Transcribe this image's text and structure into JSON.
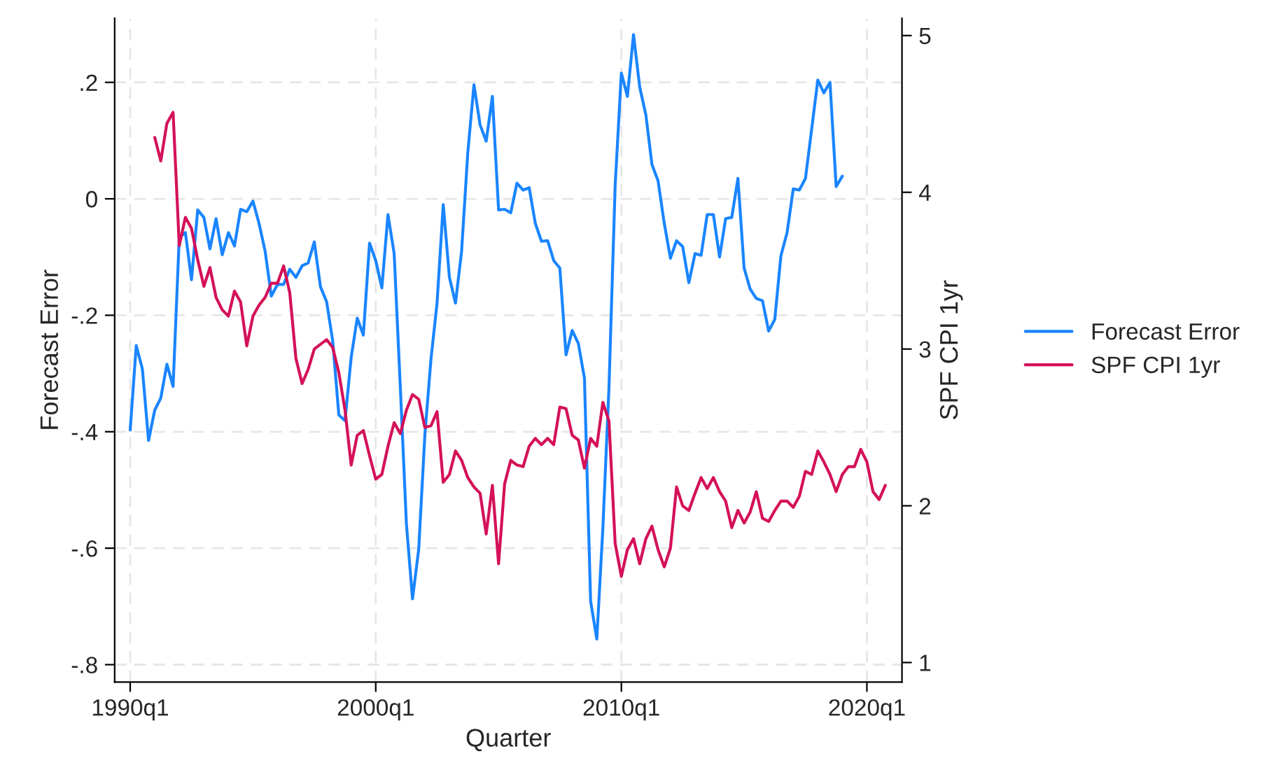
{
  "chart_data": {
    "type": "line",
    "xlabel": "Quarter",
    "ylabel": "Forecast Error",
    "y2label": "SPF CPI 1yr",
    "xlim": [
      "1989-05-15",
      "2021-06-06"
    ],
    "xticks": [
      {
        "value": "1990-01",
        "label": "1990q1"
      },
      {
        "value": "2000-01",
        "label": "2000q1"
      },
      {
        "value": "2010-01",
        "label": "2010q1"
      },
      {
        "value": "2020-01",
        "label": "2020q1"
      }
    ],
    "ylim": [
      -0.83,
      0.31
    ],
    "yticks": [
      {
        "value": -0.8,
        "label": "-.8"
      },
      {
        "value": -0.6,
        "label": "-.6"
      },
      {
        "value": -0.4,
        "label": "-.4"
      },
      {
        "value": -0.2,
        "label": "-.2"
      },
      {
        "value": 0,
        "label": "0"
      },
      {
        "value": 0.2,
        "label": ".2"
      }
    ],
    "y2lim": [
      0.875,
      5.11
    ],
    "y2ticks": [
      1,
      2,
      3,
      4,
      5
    ],
    "grid": true,
    "legend": "right",
    "series": [
      {
        "name": "Forecast Error",
        "color": "#1a85ff",
        "x": [
          "1990-01",
          "1990-04",
          "1990-07",
          "1990-10",
          "1991-01",
          "1991-04",
          "1991-07",
          "1991-10",
          "1992-01",
          "1992-04",
          "1992-07",
          "1992-10",
          "1993-01",
          "1993-04",
          "1993-07",
          "1993-10",
          "1994-01",
          "1994-04",
          "1994-07",
          "1994-10",
          "1995-01",
          "1995-04",
          "1995-07",
          "1995-10",
          "1996-01",
          "1996-04",
          "1996-07",
          "1996-10",
          "1997-01",
          "1997-04",
          "1997-07",
          "1997-10",
          "1998-01",
          "1998-04",
          "1998-07",
          "1998-10",
          "1999-01",
          "1999-04",
          "1999-07",
          "1999-10",
          "2000-01",
          "2000-04",
          "2000-07",
          "2000-10",
          "2001-01",
          "2001-04",
          "2001-07",
          "2001-10",
          "2002-01",
          "2002-04",
          "2002-07",
          "2002-10",
          "2003-01",
          "2003-04",
          "2003-07",
          "2003-10",
          "2004-01",
          "2004-04",
          "2004-07",
          "2004-10",
          "2005-01",
          "2005-04",
          "2005-07",
          "2005-10",
          "2006-01",
          "2006-04",
          "2006-07",
          "2006-10",
          "2007-01",
          "2007-04",
          "2007-07",
          "2007-10",
          "2008-01",
          "2008-04",
          "2008-07",
          "2008-10",
          "2009-01",
          "2009-04",
          "2009-07",
          "2009-10",
          "2010-01",
          "2010-04",
          "2010-07",
          "2010-10",
          "2011-01",
          "2011-04",
          "2011-07",
          "2011-10",
          "2012-01",
          "2012-04",
          "2012-07",
          "2012-10",
          "2013-01",
          "2013-04",
          "2013-07",
          "2013-10",
          "2014-01",
          "2014-04",
          "2014-07",
          "2014-10",
          "2015-01",
          "2015-04",
          "2015-07",
          "2015-10",
          "2016-01",
          "2016-04",
          "2016-07",
          "2016-10",
          "2017-01",
          "2017-04",
          "2017-07",
          "2017-10",
          "2018-01",
          "2018-04",
          "2018-07",
          "2018-10",
          "2019-01"
        ],
        "values": [
          -0.397,
          -0.252,
          -0.292,
          -0.415,
          -0.363,
          -0.342,
          -0.284,
          -0.322,
          -0.066,
          -0.058,
          -0.139,
          -0.019,
          -0.032,
          -0.086,
          -0.034,
          -0.096,
          -0.058,
          -0.081,
          -0.018,
          -0.022,
          -0.004,
          -0.042,
          -0.09,
          -0.167,
          -0.147,
          -0.147,
          -0.121,
          -0.135,
          -0.115,
          -0.11,
          -0.074,
          -0.151,
          -0.177,
          -0.244,
          -0.371,
          -0.381,
          -0.272,
          -0.205,
          -0.234,
          -0.076,
          -0.106,
          -0.153,
          -0.027,
          -0.094,
          -0.324,
          -0.558,
          -0.687,
          -0.602,
          -0.405,
          -0.276,
          -0.179,
          -0.01,
          -0.135,
          -0.179,
          -0.09,
          0.079,
          0.196,
          0.127,
          0.099,
          0.176,
          -0.019,
          -0.018,
          -0.024,
          0.027,
          0.015,
          0.019,
          -0.042,
          -0.073,
          -0.072,
          -0.106,
          -0.119,
          -0.268,
          -0.226,
          -0.248,
          -0.308,
          -0.691,
          -0.756,
          -0.566,
          -0.324,
          0.023,
          0.216,
          0.176,
          0.282,
          0.192,
          0.144,
          0.059,
          0.031,
          -0.042,
          -0.102,
          -0.072,
          -0.082,
          -0.144,
          -0.094,
          -0.097,
          -0.027,
          -0.027,
          -0.1,
          -0.034,
          -0.032,
          0.035,
          -0.119,
          -0.155,
          -0.171,
          -0.175,
          -0.227,
          -0.207,
          -0.098,
          -0.058,
          0.017,
          0.015,
          0.035,
          0.119,
          0.204,
          0.182,
          0.2,
          0.021,
          0.039
        ]
      },
      {
        "name": "SPF CPI 1yr",
        "color": "#d41159",
        "axis": "y2",
        "x": [
          "1991-01",
          "1991-04",
          "1991-07",
          "1991-10",
          "1992-01",
          "1992-04",
          "1992-07",
          "1992-10",
          "1993-01",
          "1993-04",
          "1993-07",
          "1993-10",
          "1994-01",
          "1994-04",
          "1994-07",
          "1994-10",
          "1995-01",
          "1995-04",
          "1995-07",
          "1995-10",
          "1996-01",
          "1996-04",
          "1996-07",
          "1996-10",
          "1997-01",
          "1997-04",
          "1997-07",
          "1997-10",
          "1998-01",
          "1998-04",
          "1998-07",
          "1998-10",
          "1999-01",
          "1999-04",
          "1999-07",
          "1999-10",
          "2000-01",
          "2000-04",
          "2000-07",
          "2000-10",
          "2001-01",
          "2001-04",
          "2001-07",
          "2001-10",
          "2002-01",
          "2002-04",
          "2002-07",
          "2002-10",
          "2003-01",
          "2003-04",
          "2003-07",
          "2003-10",
          "2004-01",
          "2004-04",
          "2004-07",
          "2004-10",
          "2005-01",
          "2005-04",
          "2005-07",
          "2005-10",
          "2006-01",
          "2006-04",
          "2006-07",
          "2006-10",
          "2007-01",
          "2007-04",
          "2007-07",
          "2007-10",
          "2008-01",
          "2008-04",
          "2008-07",
          "2008-10",
          "2009-01",
          "2009-04",
          "2009-07",
          "2009-10",
          "2010-01",
          "2010-04",
          "2010-07",
          "2010-10",
          "2011-01",
          "2011-04",
          "2011-07",
          "2011-10",
          "2012-01",
          "2012-04",
          "2012-07",
          "2012-10",
          "2013-01",
          "2013-04",
          "2013-07",
          "2013-10",
          "2014-01",
          "2014-04",
          "2014-07",
          "2014-10",
          "2015-01",
          "2015-04",
          "2015-07",
          "2015-10",
          "2016-01",
          "2016-04",
          "2016-07",
          "2016-10",
          "2017-01",
          "2017-04",
          "2017-07",
          "2017-10",
          "2018-01",
          "2018-04",
          "2018-07",
          "2018-10",
          "2019-01",
          "2019-04",
          "2019-07",
          "2019-10",
          "2020-01",
          "2020-04",
          "2020-07",
          "2020-10"
        ],
        "values": [
          4.35,
          4.2,
          4.44,
          4.51,
          3.66,
          3.84,
          3.77,
          3.57,
          3.4,
          3.52,
          3.33,
          3.25,
          3.21,
          3.37,
          3.3,
          3.02,
          3.21,
          3.28,
          3.33,
          3.42,
          3.42,
          3.53,
          3.36,
          2.94,
          2.78,
          2.87,
          3.0,
          3.03,
          3.06,
          3.01,
          2.85,
          2.61,
          2.26,
          2.45,
          2.48,
          2.32,
          2.17,
          2.2,
          2.38,
          2.53,
          2.46,
          2.61,
          2.71,
          2.68,
          2.5,
          2.51,
          2.6,
          2.15,
          2.2,
          2.35,
          2.29,
          2.18,
          2.12,
          2.08,
          1.82,
          2.13,
          1.63,
          2.14,
          2.29,
          2.26,
          2.25,
          2.38,
          2.43,
          2.39,
          2.43,
          2.39,
          2.63,
          2.62,
          2.45,
          2.42,
          2.24,
          2.43,
          2.38,
          2.66,
          2.54,
          1.76,
          1.55,
          1.72,
          1.79,
          1.63,
          1.79,
          1.87,
          1.72,
          1.61,
          1.73,
          2.12,
          2.0,
          1.97,
          2.08,
          2.18,
          2.11,
          2.18,
          2.09,
          2.03,
          1.86,
          1.97,
          1.89,
          1.96,
          2.09,
          1.92,
          1.9,
          1.97,
          2.03,
          2.03,
          1.99,
          2.06,
          2.22,
          2.2,
          2.35,
          2.28,
          2.2,
          2.09,
          2.2,
          2.25,
          2.25,
          2.36,
          2.28,
          2.09,
          2.04,
          2.13
        ]
      }
    ]
  }
}
